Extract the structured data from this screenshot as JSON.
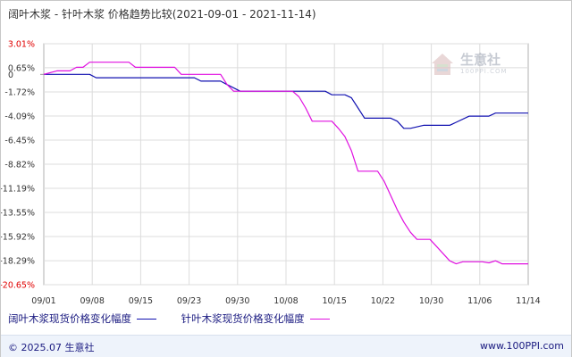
{
  "header": {
    "title": "阔叶木浆 - 针叶木浆 价格趋势比较(2021-09-01 - 2021-11-14)"
  },
  "chart_data": {
    "type": "line",
    "title": "阔叶木浆 - 针叶木浆 价格趋势比较(2021-09-01 - 2021-11-14)",
    "x_tick_labels": [
      "09/01",
      "09/08",
      "09/15",
      "09/23",
      "09/30",
      "10/08",
      "10/15",
      "10/22",
      "10/30",
      "11/06",
      "11/14"
    ],
    "y_tick_labels": [
      "3.01%",
      "0.65%",
      "0",
      "-1.72%",
      "-4.09%",
      "-6.45%",
      "-8.82%",
      "-11.19%",
      "-13.55%",
      "-15.92%",
      "-18.29%",
      "-20.65%"
    ],
    "ylim": [
      -20.65,
      3.01
    ],
    "xlim": [
      0,
      74
    ],
    "grid": true,
    "legend_position": "bottom",
    "series": [
      {
        "name": "阔叶木浆现货价格变化幅度",
        "color": "#1010b0",
        "points": [
          [
            0,
            0
          ],
          [
            7,
            0
          ],
          [
            8,
            -0.33
          ],
          [
            23,
            -0.33
          ],
          [
            24,
            -0.66
          ],
          [
            27,
            -0.66
          ],
          [
            28,
            -1
          ],
          [
            29,
            -1.32
          ],
          [
            30,
            -1.65
          ],
          [
            43,
            -1.65
          ],
          [
            44,
            -2
          ],
          [
            46,
            -2
          ],
          [
            47,
            -2.3
          ],
          [
            48,
            -3.3
          ],
          [
            49,
            -4.3
          ],
          [
            50,
            -4.3
          ],
          [
            53,
            -4.3
          ],
          [
            54,
            -4.6
          ],
          [
            55,
            -5.3
          ],
          [
            56,
            -5.3
          ],
          [
            58,
            -5
          ],
          [
            62,
            -5
          ],
          [
            63,
            -4.7
          ],
          [
            65,
            -4.1
          ],
          [
            68,
            -4.1
          ],
          [
            69,
            -3.8
          ],
          [
            74,
            -3.8
          ]
        ]
      },
      {
        "name": "针叶木浆现货价格变化幅度",
        "color": "#e010e0",
        "points": [
          [
            0,
            0
          ],
          [
            2,
            0.35
          ],
          [
            4,
            0.35
          ],
          [
            5,
            0.7
          ],
          [
            6,
            0.7
          ],
          [
            7,
            1.2
          ],
          [
            13,
            1.2
          ],
          [
            14,
            0.7
          ],
          [
            20,
            0.7
          ],
          [
            21,
            0
          ],
          [
            27,
            0
          ],
          [
            28,
            -1
          ],
          [
            29,
            -1.65
          ],
          [
            36,
            -1.65
          ],
          [
            38,
            -1.65
          ],
          [
            39,
            -2.2
          ],
          [
            40,
            -3.3
          ],
          [
            41,
            -4.6
          ],
          [
            44,
            -4.6
          ],
          [
            45,
            -5.3
          ],
          [
            46,
            -6.1
          ],
          [
            47,
            -7.5
          ],
          [
            48,
            -9.5
          ],
          [
            51,
            -9.5
          ],
          [
            52,
            -10.5
          ],
          [
            54,
            -13.3
          ],
          [
            55,
            -14.5
          ],
          [
            56,
            -15.5
          ],
          [
            57,
            -16.2
          ],
          [
            59,
            -16.2
          ],
          [
            60,
            -16.9
          ],
          [
            61,
            -17.6
          ],
          [
            62,
            -18.3
          ],
          [
            63,
            -18.6
          ],
          [
            64,
            -18.4
          ],
          [
            67,
            -18.4
          ],
          [
            68,
            -18.5
          ],
          [
            69,
            -18.3
          ],
          [
            70,
            -18.6
          ],
          [
            74,
            -18.6
          ]
        ]
      }
    ]
  },
  "legend": {
    "items": [
      {
        "label": "阔叶木浆现货价格变化幅度",
        "color": "#1010b0"
      },
      {
        "label": "针叶木浆现货价格变化幅度",
        "color": "#e010e0"
      }
    ]
  },
  "watermark": {
    "text": "生意社",
    "url": "100PPI.COM"
  },
  "footer": {
    "copyright": "© 2025.07 生意社",
    "url": "www.100PPI.com"
  }
}
